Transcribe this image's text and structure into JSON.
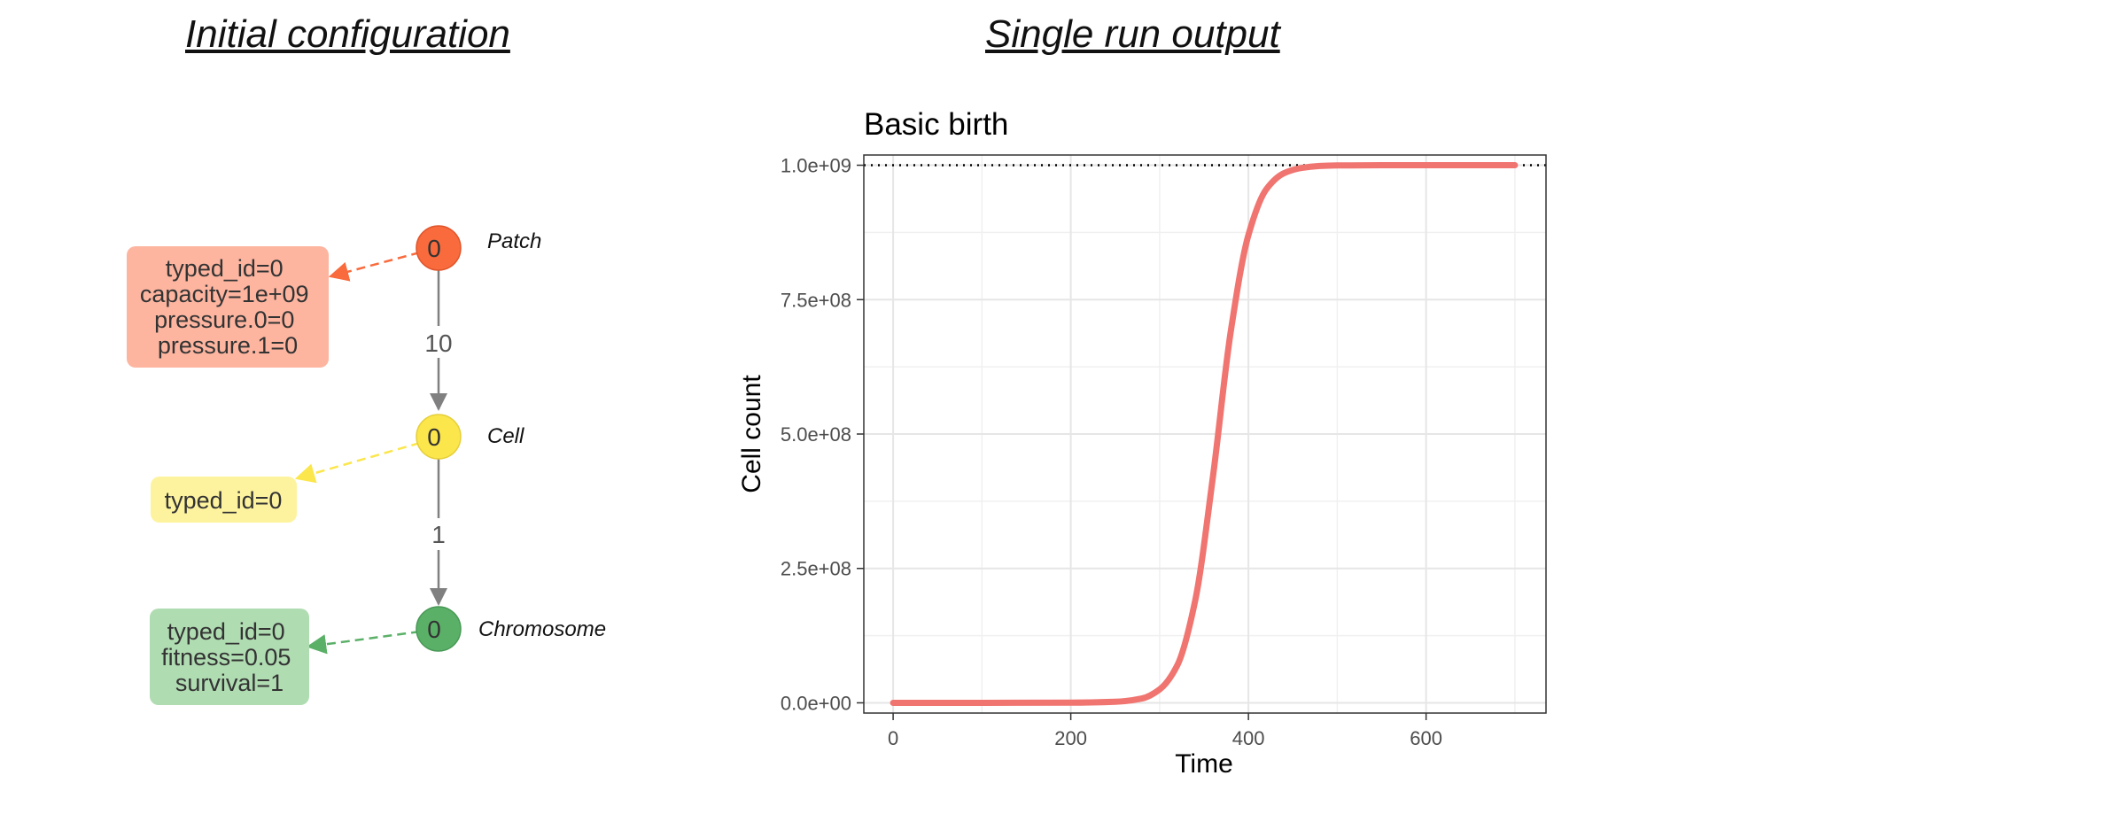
{
  "left_title": "Initial configuration",
  "right_title": "Single run output",
  "diagram": {
    "nodes": [
      {
        "label": "Patch",
        "number": "0",
        "color": "#f96b3d",
        "attrs": [
          "typed_id=0",
          "capacity=1e+09",
          "pressure.0=0",
          "pressure.1=0"
        ],
        "box_color": "#fdb5a0"
      },
      {
        "label": "Cell",
        "number": "0",
        "color": "#fbe64c",
        "attrs": [
          "typed_id=0"
        ],
        "box_color": "#fdf39f"
      },
      {
        "label": "Chromosome",
        "number": "0",
        "color": "#5bb068",
        "attrs": [
          "typed_id=0",
          "fitness=0.05",
          "survival=1"
        ],
        "box_color": "#b0dcb2"
      }
    ],
    "edges": [
      {
        "from": "Patch",
        "to": "Cell",
        "label": "10"
      },
      {
        "from": "Cell",
        "to": "Chromosome",
        "label": "1"
      }
    ]
  },
  "chart_data": {
    "type": "line",
    "title": "Basic birth",
    "xlabel": "Time",
    "ylabel": "Cell count",
    "xlim": [
      -33,
      735
    ],
    "ylim": [
      -19000000.0,
      1019000000.0
    ],
    "xticks": [
      0,
      200,
      400,
      600
    ],
    "xtick_labels": [
      "0",
      "200",
      "400",
      "600"
    ],
    "yticks": [
      0,
      250000000,
      500000000,
      750000000,
      1000000000
    ],
    "ytick_labels": [
      "0.0e+00",
      "2.5e+08",
      "5.0e+08",
      "7.5e+08",
      "1.0e+09"
    ],
    "hline": {
      "y": 1000000000,
      "style": "dotted"
    },
    "grid": true,
    "series": [
      {
        "color": "#f07470",
        "x": [
          0,
          100,
          200,
          250,
          280,
          300,
          320,
          340,
          360,
          380,
          400,
          420,
          440,
          460,
          480,
          500,
          550,
          600,
          650,
          700
        ],
        "y": [
          0,
          0,
          200000,
          2000000,
          8000000,
          25000000,
          70000000,
          190000000,
          420000000,
          690000000,
          870000000,
          955000000,
          985000000,
          995000000,
          998500000,
          999500000,
          1000000000,
          1000000000,
          1000000000,
          1000000000
        ]
      }
    ]
  }
}
